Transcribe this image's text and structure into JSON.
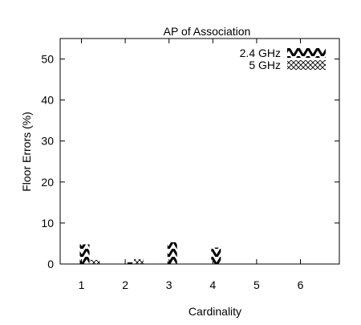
{
  "chart_data": {
    "type": "bar",
    "title": "AP of Association",
    "xlabel": "Cardinality",
    "ylabel": "Floor Errors (%)",
    "categories": [
      "1",
      "2",
      "3",
      "4",
      "5",
      "6"
    ],
    "ylim": [
      0,
      55
    ],
    "yticks": [
      "0",
      "10",
      "20",
      "30",
      "40",
      "50"
    ],
    "grid": false,
    "legend_position": "top-right",
    "series": [
      {
        "name": "2.4 GHz",
        "pattern": "zigzag",
        "color": "#000000",
        "values": [
          4.8,
          0.4,
          5.3,
          4.0,
          0,
          0
        ]
      },
      {
        "name": "5 GHz",
        "pattern": "crosshatch",
        "color": "#000000",
        "values": [
          1.0,
          1.2,
          0,
          0,
          0,
          0
        ]
      }
    ]
  }
}
